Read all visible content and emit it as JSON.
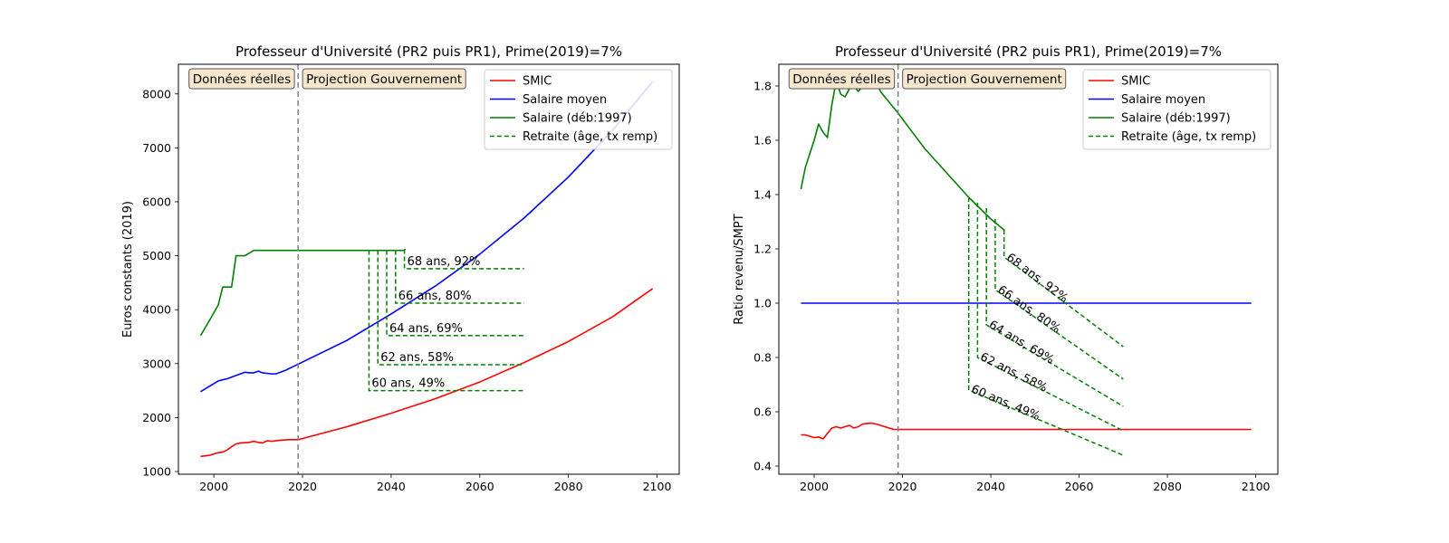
{
  "colors": {
    "smic": "#ff0000",
    "salaire_moyen": "#0000ff",
    "salaire": "#008000",
    "retraite": "#008000",
    "divider": "#808080",
    "phase_box_fill": "#f5e6cc",
    "phase_box_stroke": "#555555"
  },
  "chart_data": [
    {
      "type": "line",
      "title": "Professeur d'Université (PR2 puis PR1), Prime(2019)=7%",
      "xlabel": "",
      "ylabel": "Euros constants (2019)",
      "xlim": [
        1992,
        2105
      ],
      "ylim": [
        950,
        8550
      ],
      "xticks": [
        2000,
        2020,
        2040,
        2060,
        2080,
        2100
      ],
      "yticks": [
        1000,
        2000,
        3000,
        4000,
        5000,
        6000,
        7000,
        8000
      ],
      "divider_x": 2019,
      "phase_labels": [
        "Données réelles",
        "Projection Gouvernement"
      ],
      "legend": {
        "placement": "top-right",
        "entries": [
          {
            "label": "SMIC",
            "color": "#ff0000",
            "style": "solid"
          },
          {
            "label": "Salaire moyen",
            "color": "#0000ff",
            "style": "solid"
          },
          {
            "label": "Salaire (déb:1997)",
            "color": "#008000",
            "style": "solid"
          },
          {
            "label": "Retraite (âge, tx remp)",
            "color": "#008000",
            "style": "dashed"
          }
        ]
      },
      "series": [
        {
          "name": "SMIC",
          "color": "#ff0000",
          "x": [
            1997,
            1999,
            2001,
            2002,
            2003,
            2004,
            2005,
            2006,
            2008,
            2009,
            2010,
            2011,
            2012,
            2013,
            2015,
            2017,
            2019,
            2030,
            2040,
            2050,
            2060,
            2070,
            2080,
            2090,
            2099
          ],
          "y": [
            1280,
            1300,
            1350,
            1360,
            1400,
            1460,
            1510,
            1530,
            1540,
            1560,
            1540,
            1530,
            1570,
            1560,
            1580,
            1590,
            1590,
            1830,
            2080,
            2350,
            2660,
            3020,
            3410,
            3870,
            4390
          ]
        },
        {
          "name": "Salaire moyen",
          "color": "#0000ff",
          "x": [
            1997,
            1999,
            2001,
            2002,
            2003,
            2005,
            2007,
            2008,
            2009,
            2010,
            2011,
            2013,
            2014,
            2016,
            2019,
            2030,
            2040,
            2050,
            2060,
            2070,
            2080,
            2090,
            2099
          ],
          "y": [
            2480,
            2580,
            2680,
            2700,
            2720,
            2780,
            2840,
            2830,
            2830,
            2860,
            2830,
            2810,
            2810,
            2870,
            2990,
            3430,
            3920,
            4440,
            5030,
            5700,
            6460,
            7330,
            8230
          ]
        },
        {
          "name": "Salaire (déb:1997)",
          "color": "#008000",
          "x": [
            1997,
            1999,
            2001,
            2002,
            2004,
            2005,
            2007,
            2009,
            2019,
            2040,
            2043,
            2043.2
          ],
          "y": [
            3520,
            3800,
            4090,
            4420,
            4420,
            5000,
            5000,
            5100,
            5100,
            5100,
            5100,
            5130
          ]
        }
      ],
      "retirement": [
        {
          "label": "60 ans, 49%",
          "start_x": 2035,
          "from_y": 5100,
          "to_y": 2500,
          "end_x": 2070,
          "end_y": 2500
        },
        {
          "label": "62 ans, 58%",
          "start_x": 2037,
          "from_y": 5100,
          "to_y": 2980,
          "end_x": 2070,
          "end_y": 2980
        },
        {
          "label": "64 ans, 69%",
          "start_x": 2039,
          "from_y": 5100,
          "to_y": 3520,
          "end_x": 2070,
          "end_y": 3520
        },
        {
          "label": "66 ans, 80%",
          "start_x": 2041,
          "from_y": 5100,
          "to_y": 4120,
          "end_x": 2070,
          "end_y": 4120
        },
        {
          "label": "68 ans, 92%",
          "start_x": 2043,
          "from_y": 5120,
          "to_y": 4760,
          "end_x": 2070,
          "end_y": 4760
        }
      ]
    },
    {
      "type": "line",
      "title": "Professeur d'Université (PR2 puis PR1), Prime(2019)=7%",
      "xlabel": "",
      "ylabel": "Ratio revenu/SMPT",
      "xlim": [
        1992,
        2105
      ],
      "ylim": [
        0.37,
        1.88
      ],
      "xticks": [
        2000,
        2020,
        2040,
        2060,
        2080,
        2100
      ],
      "yticks": [
        0.4,
        0.6,
        0.8,
        1.0,
        1.2,
        1.4,
        1.6,
        1.8
      ],
      "divider_x": 2019,
      "phase_labels": [
        "Données réelles",
        "Projection Gouvernement"
      ],
      "legend": {
        "placement": "top-right",
        "entries": [
          {
            "label": "SMIC",
            "color": "#ff0000",
            "style": "solid"
          },
          {
            "label": "Salaire moyen",
            "color": "#0000ff",
            "style": "solid"
          },
          {
            "label": "Salaire (déb:1997)",
            "color": "#008000",
            "style": "solid"
          },
          {
            "label": "Retraite (âge, tx remp)",
            "color": "#008000",
            "style": "dashed"
          }
        ]
      },
      "series": [
        {
          "name": "SMIC",
          "color": "#ff0000",
          "x": [
            1997,
            1998,
            1999,
            2000,
            2001,
            2002,
            2003,
            2004,
            2005,
            2006,
            2007,
            2008,
            2009,
            2010,
            2011,
            2012,
            2013,
            2014,
            2015,
            2016,
            2017,
            2018,
            2019,
            2099
          ],
          "y": [
            0.515,
            0.515,
            0.51,
            0.505,
            0.507,
            0.5,
            0.52,
            0.54,
            0.545,
            0.54,
            0.545,
            0.55,
            0.54,
            0.545,
            0.555,
            0.557,
            0.558,
            0.555,
            0.55,
            0.545,
            0.54,
            0.535,
            0.535,
            0.535
          ]
        },
        {
          "name": "Salaire moyen",
          "color": "#0000ff",
          "x": [
            1997,
            2099
          ],
          "y": [
            1.0,
            1.0
          ]
        },
        {
          "name": "Salaire (déb:1997)",
          "color": "#008000",
          "x": [
            1997,
            1998,
            1999,
            2000,
            2001,
            2002,
            2003,
            2004,
            2005,
            2006,
            2007,
            2008,
            2009,
            2010,
            2011,
            2012,
            2013,
            2014,
            2015,
            2016,
            2019,
            2025,
            2030,
            2035,
            2040,
            2043,
            2043.2
          ],
          "y": [
            1.42,
            1.5,
            1.55,
            1.6,
            1.66,
            1.63,
            1.61,
            1.73,
            1.82,
            1.77,
            1.76,
            1.79,
            1.8,
            1.78,
            1.8,
            1.81,
            1.82,
            1.82,
            1.78,
            1.76,
            1.7,
            1.57,
            1.48,
            1.39,
            1.31,
            1.27,
            1.27
          ]
        }
      ],
      "retirement": [
        {
          "label": "60 ans, 49%",
          "start_x": 2035,
          "from_y": 1.39,
          "to_y": 0.68,
          "end_x": 2070,
          "end_y": 0.44
        },
        {
          "label": "62 ans, 58%",
          "start_x": 2037,
          "from_y": 1.37,
          "to_y": 0.8,
          "end_x": 2070,
          "end_y": 0.53
        },
        {
          "label": "64 ans, 69%",
          "start_x": 2039,
          "from_y": 1.35,
          "to_y": 0.92,
          "end_x": 2070,
          "end_y": 0.62
        },
        {
          "label": "66 ans, 80%",
          "start_x": 2041,
          "from_y": 1.31,
          "to_y": 1.05,
          "end_x": 2070,
          "end_y": 0.72
        },
        {
          "label": "68 ans, 92%",
          "start_x": 2043,
          "from_y": 1.27,
          "to_y": 1.17,
          "end_x": 2070,
          "end_y": 0.84
        }
      ]
    }
  ]
}
